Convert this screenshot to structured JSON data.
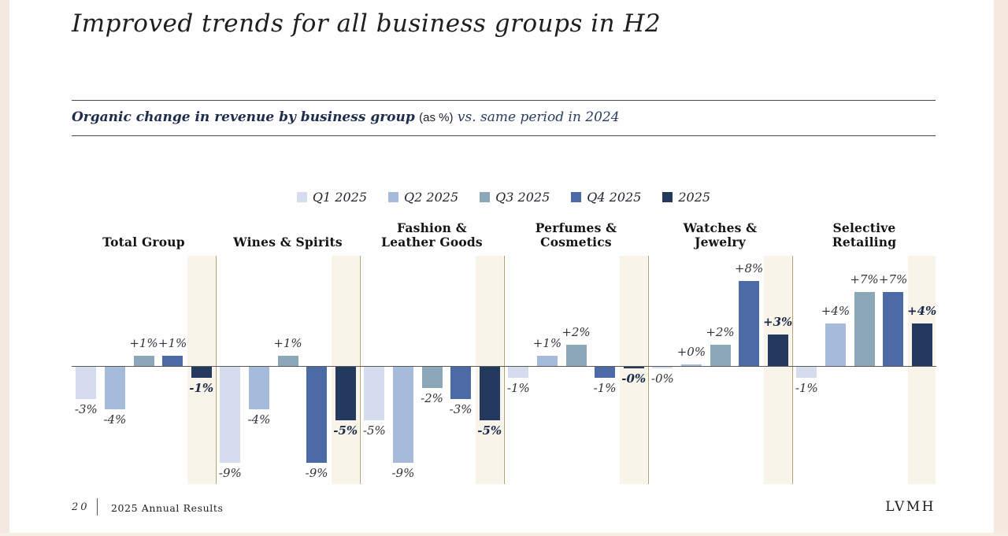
{
  "slide": {
    "title": "Improved trends for all business groups in H2",
    "subtitle": {
      "bold": "Organic change in revenue by business group",
      "unit": "(as %)",
      "rest": "vs. same period in 2024"
    },
    "footer": {
      "page": "20",
      "left": "2025 Annual Results",
      "right": "LVMH"
    }
  },
  "chart_data": {
    "type": "bar",
    "title": "Organic change in revenue by business group (as %) vs. same period in 2024",
    "legend_position": "top-center",
    "grid": false,
    "ylim": [
      -10,
      9
    ],
    "unit": "%",
    "categories": [
      "Total Group",
      "Wines & Spirits",
      "Fashion & Leather Goods",
      "Perfumes & Cosmetics",
      "Watches & Jewelry",
      "Selective Retailing"
    ],
    "series": [
      {
        "name": "Q1 2025",
        "color": "#d4dcee",
        "values": [
          -3,
          -9,
          -5,
          -1,
          0,
          -1
        ],
        "labels": [
          "-3%",
          "-9%",
          "-5%",
          "-1%",
          "-0%",
          "-1%"
        ]
      },
      {
        "name": "Q2 2025",
        "color": "#a6bad9",
        "values": [
          -4,
          -4,
          -9,
          1,
          0,
          4
        ],
        "labels": [
          "-4%",
          "-4%",
          "-9%",
          "+1%",
          "+0%",
          "+4%"
        ]
      },
      {
        "name": "Q3 2025",
        "color": "#8ca8b8",
        "values": [
          1,
          1,
          -2,
          2,
          2,
          7
        ],
        "labels": [
          "+1%",
          "+1%",
          "-2%",
          "+2%",
          "+2%",
          "+7%"
        ]
      },
      {
        "name": "Q4 2025",
        "color": "#4c6ba6",
        "values": [
          1,
          -9,
          -3,
          -1,
          8,
          7
        ],
        "labels": [
          "+1%",
          "-9%",
          "-3%",
          "-1%",
          "+8%",
          "+7%"
        ]
      },
      {
        "name": "2025",
        "color": "#23395e",
        "values": [
          -1,
          -5,
          -5,
          0,
          3,
          4
        ],
        "labels": [
          "-1%",
          "-5%",
          "-5%",
          "-0%",
          "+3%",
          "+4%"
        ]
      }
    ],
    "colors": {
      "highlight_band": "#f8f4ea",
      "group_separator": "#b5a06e",
      "baseline": "#5a5a5a"
    }
  }
}
